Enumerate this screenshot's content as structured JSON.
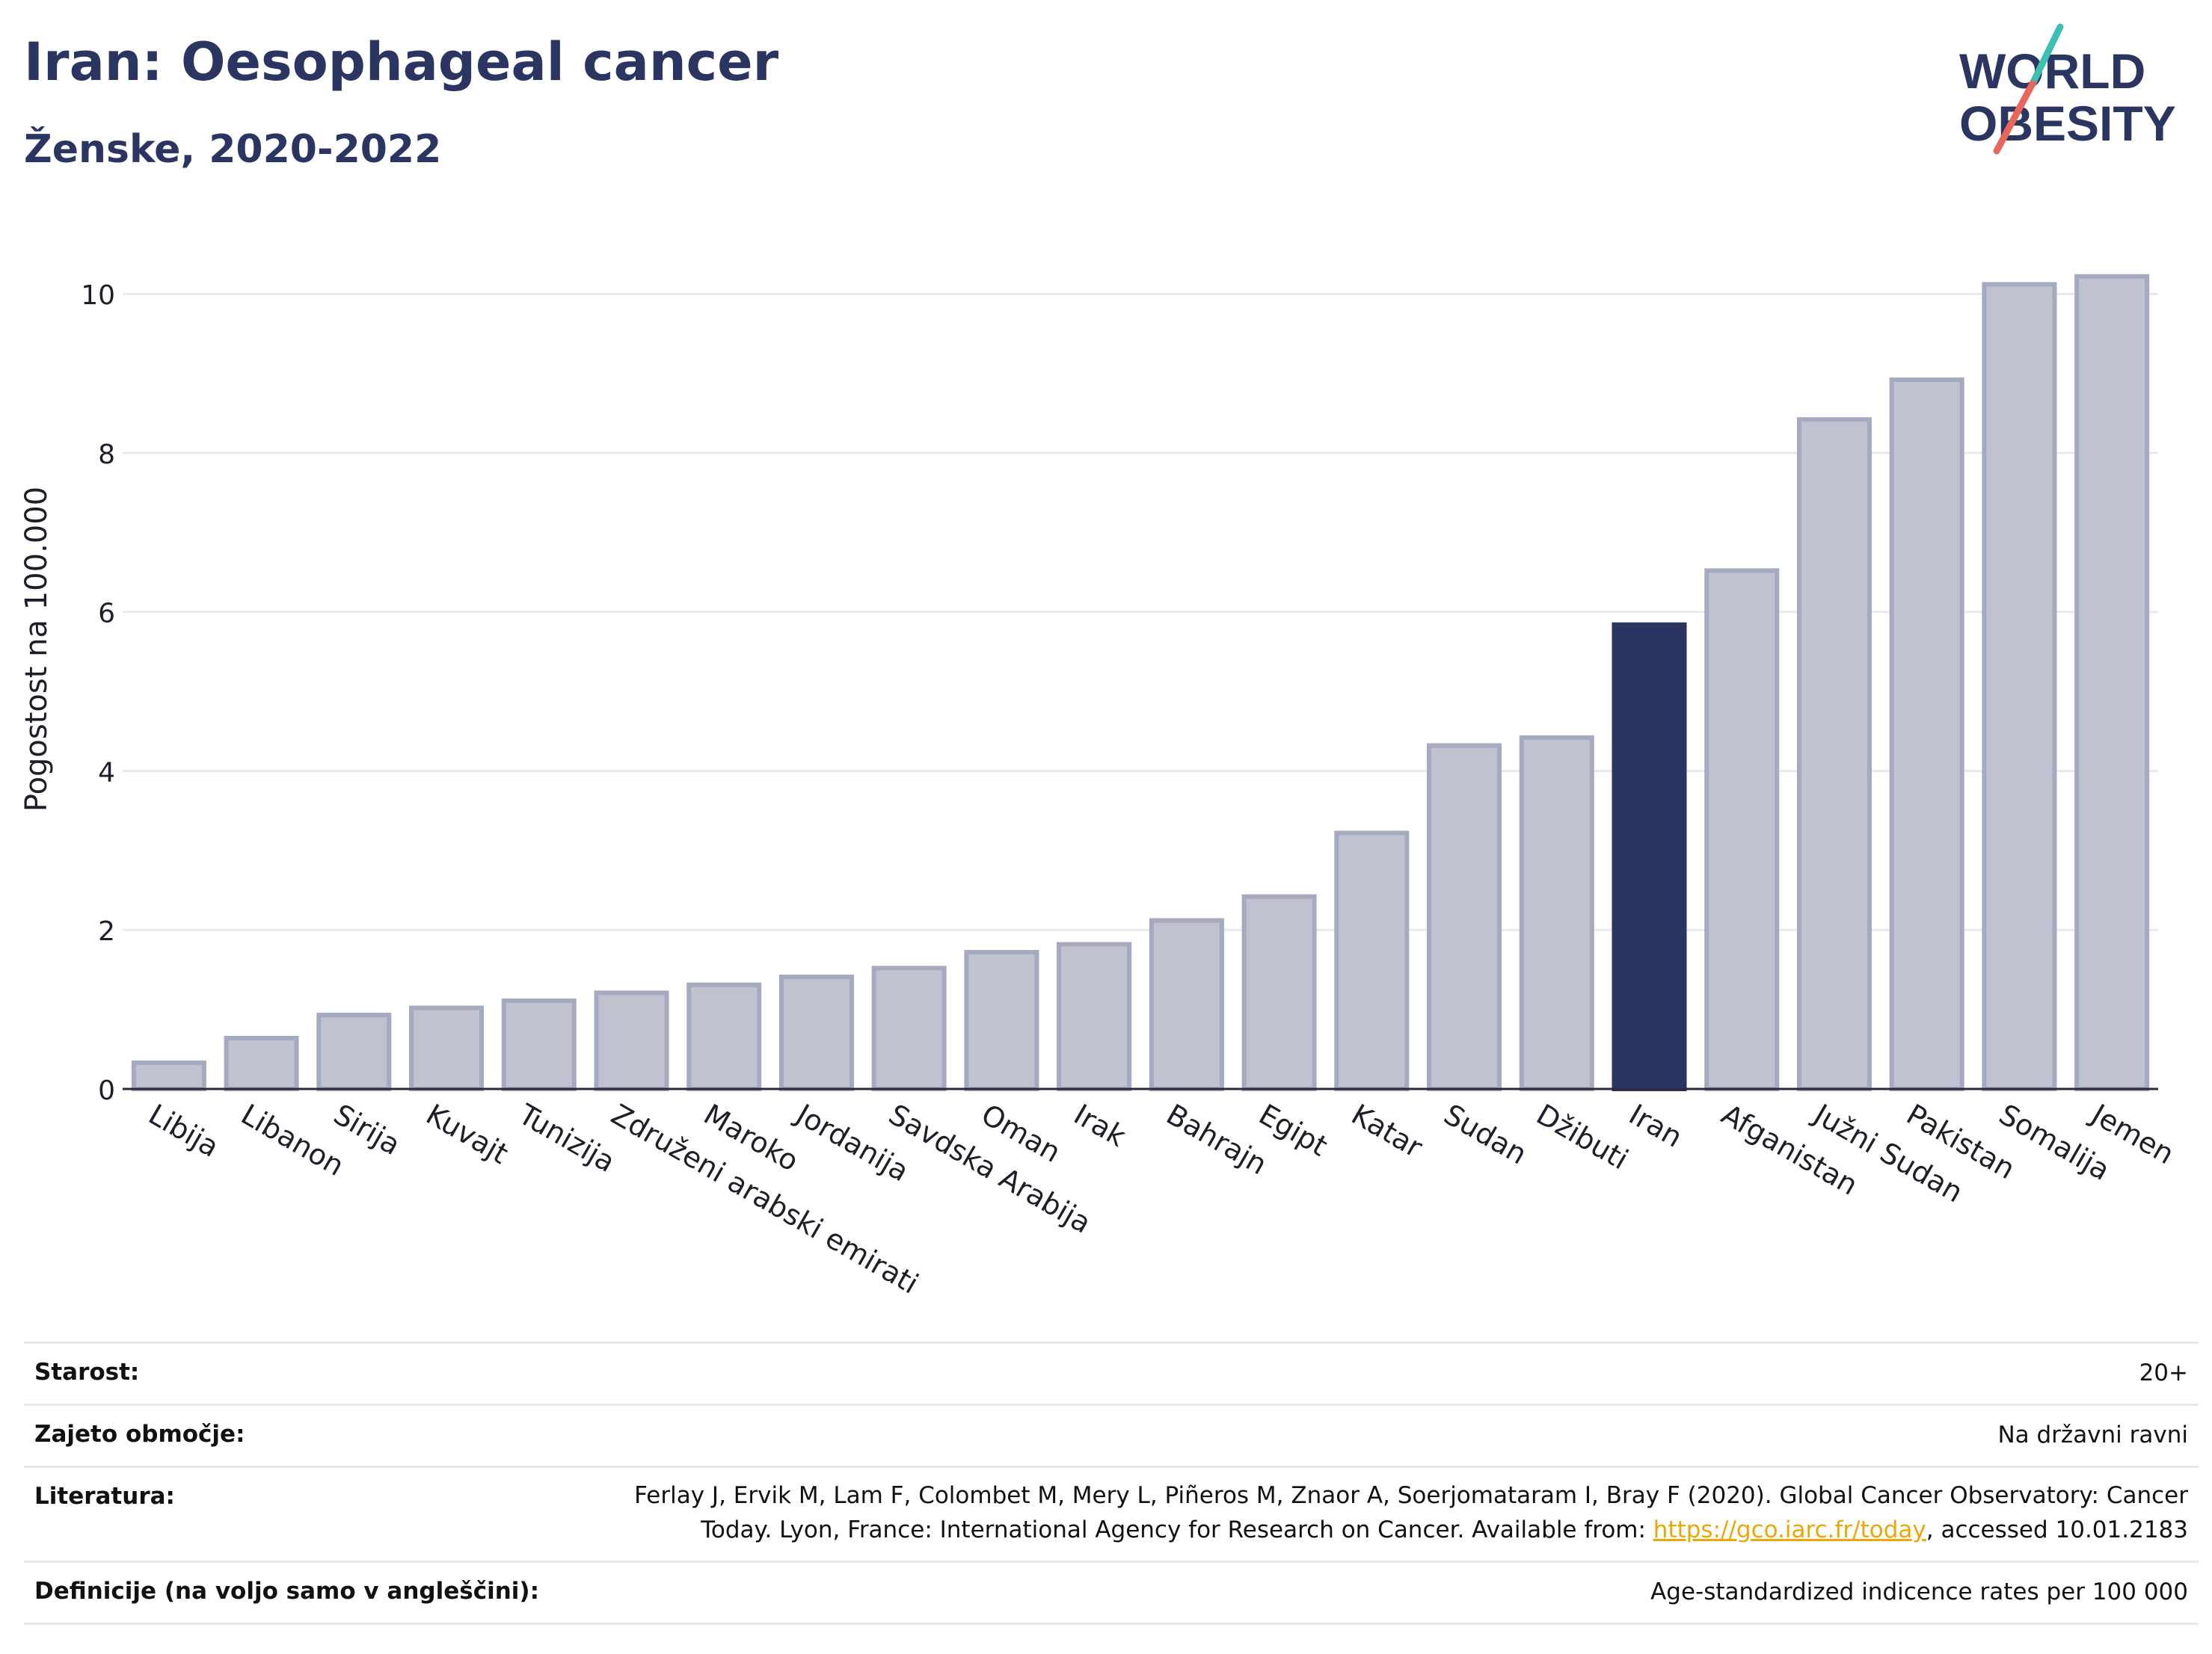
{
  "header": {
    "title": "Iran: Oesophageal cancer",
    "subtitle": "Ženske, 2020-2022"
  },
  "logo": {
    "line1": "WORLD",
    "line2": "OBESITY",
    "text_color": "#2a3561",
    "stroke_colors": [
      "#3ebfb1",
      "#e8665a"
    ]
  },
  "chart_data": {
    "type": "bar",
    "title": "Iran: Oesophageal cancer",
    "subtitle": "Ženske, 2020-2022",
    "ylabel": "Pogostost na 100.000",
    "xlabel": "",
    "ylim": [
      0,
      10.5
    ],
    "yticks": [
      0,
      2,
      4,
      6,
      8,
      10
    ],
    "grid": true,
    "highlight": "Iran",
    "colors": {
      "bar": "#bfc3d0",
      "bar_stroke": "#a5aac0",
      "highlight": "#2a3561"
    },
    "categories": [
      "Libija",
      "Libanon",
      "Sirija",
      "Kuvajt",
      "Tunizija",
      "Združeni arabski emirati",
      "Maroko",
      "Jordanija",
      "Savdska Arabija",
      "Oman",
      "Irak",
      "Bahrajn",
      "Egipt",
      "Katar",
      "Sudan",
      "Džibuti",
      "Iran",
      "Afganistan",
      "Južni Sudan",
      "Pakistan",
      "Somalija",
      "Jemen"
    ],
    "values": [
      0.33,
      0.64,
      0.93,
      1.02,
      1.11,
      1.21,
      1.31,
      1.41,
      1.52,
      1.72,
      1.82,
      2.12,
      2.42,
      3.22,
      4.32,
      4.42,
      5.84,
      6.52,
      8.42,
      8.92,
      10.12,
      10.22
    ]
  },
  "meta": [
    {
      "key": "Starost:",
      "value": "20+"
    },
    {
      "key": "Zajeto območje:",
      "value": "Na državni ravni"
    },
    {
      "key": "Literatura:",
      "value_line1": "Ferlay J, Ervik M, Lam F, Colombet M, Mery L, Piñeros M, Znaor A, Soerjomataram I, Bray F (2020). Global Cancer Observatory: Cancer",
      "value_line2_pre": "Today. Lyon, France: International Agency for Research on Cancer. Available from: ",
      "link": "https://gco.iarc.fr/today",
      "value_line2_post": ", accessed 10.01.2183"
    },
    {
      "key": "Definicije (na voljo samo v angleščini):",
      "value": "Age-standardized indicence rates per 100 000"
    }
  ]
}
